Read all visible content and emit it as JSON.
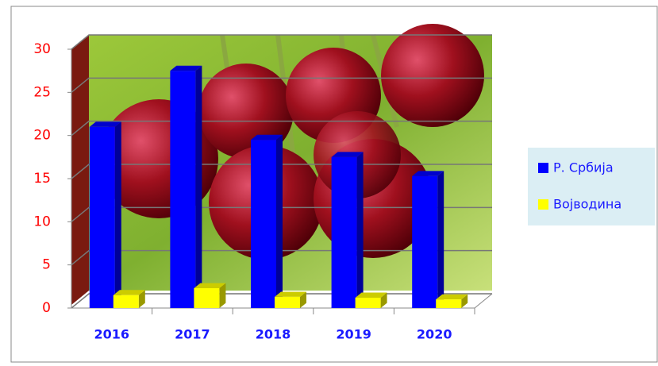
{
  "chart_data": {
    "type": "bar3d",
    "categories": [
      "2016",
      "2017",
      "2018",
      "2019",
      "2020"
    ],
    "series": [
      {
        "name": "Р. Србија",
        "color": "#0000ff",
        "values": [
          21,
          27.5,
          19.5,
          17.5,
          15.3
        ]
      },
      {
        "name": "Војводина",
        "color": "#ffff00",
        "values": [
          1.5,
          2.3,
          1.3,
          1.2,
          1.0
        ]
      }
    ],
    "ylim": [
      0,
      30
    ],
    "yticks": [
      0,
      5,
      10,
      15,
      20,
      25,
      30
    ],
    "grid": true,
    "legend": "right"
  }
}
